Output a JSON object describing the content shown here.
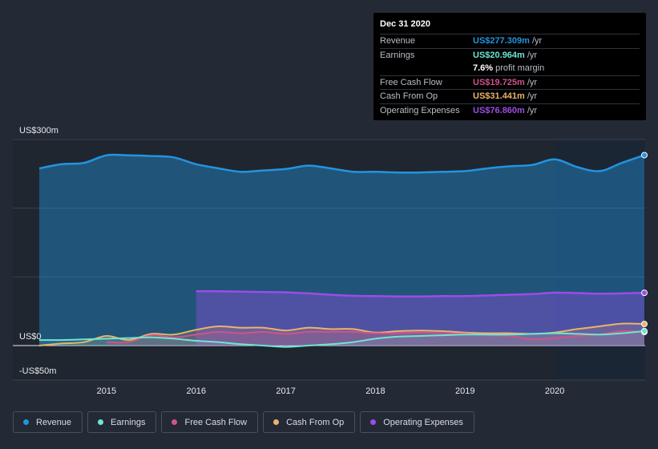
{
  "tooltip": {
    "date": "Dec 31 2020",
    "rows": [
      {
        "label": "Revenue",
        "value": "US$277.309m",
        "unit": "/yr",
        "color": "#2394df"
      },
      {
        "label": "Earnings",
        "value": "US$20.964m",
        "unit": "/yr",
        "color": "#6ce6d3"
      },
      {
        "label": "",
        "value": "7.6%",
        "unit": "profit margin",
        "color": "#ffffff"
      },
      {
        "label": "Free Cash Flow",
        "value": "US$19.725m",
        "unit": "/yr",
        "color": "#d2528a"
      },
      {
        "label": "Cash From Op",
        "value": "US$31.441m",
        "unit": "/yr",
        "color": "#e9b46a"
      },
      {
        "label": "Operating Expenses",
        "value": "US$76.860m",
        "unit": "/yr",
        "color": "#9c4ce7"
      }
    ]
  },
  "legend": [
    {
      "label": "Revenue",
      "color": "#2394df"
    },
    {
      "label": "Earnings",
      "color": "#6ce6d3"
    },
    {
      "label": "Free Cash Flow",
      "color": "#d2528a"
    },
    {
      "label": "Cash From Op",
      "color": "#e9b46a"
    },
    {
      "label": "Operating Expenses",
      "color": "#9c4ce7"
    }
  ],
  "chart_data": {
    "type": "area",
    "title": "",
    "xlabel": "",
    "ylabel": "",
    "ylim": [
      -50,
      300
    ],
    "y_tick_labels": [
      "US$300m",
      "US$0",
      "-US$50m"
    ],
    "x_tick_labels": [
      "2015",
      "2016",
      "2017",
      "2018",
      "2019",
      "2020"
    ],
    "xlim": [
      2014.25,
      2021.0
    ],
    "highlight_start": 2020.0,
    "series": [
      {
        "name": "Revenue",
        "color": "#2394df",
        "points": [
          [
            2014.25,
            258
          ],
          [
            2014.5,
            264
          ],
          [
            2014.75,
            266
          ],
          [
            2015.0,
            277
          ],
          [
            2015.25,
            277
          ],
          [
            2015.5,
            276
          ],
          [
            2015.75,
            274
          ],
          [
            2016.0,
            264
          ],
          [
            2016.25,
            258
          ],
          [
            2016.5,
            253
          ],
          [
            2016.75,
            255
          ],
          [
            2017.0,
            257
          ],
          [
            2017.25,
            262
          ],
          [
            2017.5,
            258
          ],
          [
            2017.75,
            253
          ],
          [
            2018.0,
            253
          ],
          [
            2018.25,
            252
          ],
          [
            2018.5,
            252
          ],
          [
            2018.75,
            253
          ],
          [
            2019.0,
            254
          ],
          [
            2019.25,
            258
          ],
          [
            2019.5,
            261
          ],
          [
            2019.75,
            263
          ],
          [
            2020.0,
            271
          ],
          [
            2020.25,
            260
          ],
          [
            2020.5,
            254
          ],
          [
            2020.75,
            266
          ],
          [
            2021.0,
            277.3
          ]
        ]
      },
      {
        "name": "Operating Expenses",
        "color": "#9c4ce7",
        "points": [
          [
            2016.0,
            79
          ],
          [
            2016.25,
            79
          ],
          [
            2016.5,
            78.5
          ],
          [
            2016.75,
            78
          ],
          [
            2017.0,
            77.5
          ],
          [
            2017.25,
            76
          ],
          [
            2017.5,
            74
          ],
          [
            2017.75,
            72.5
          ],
          [
            2018.0,
            72
          ],
          [
            2018.25,
            71.5
          ],
          [
            2018.5,
            71.5
          ],
          [
            2018.75,
            72
          ],
          [
            2019.0,
            72
          ],
          [
            2019.25,
            73
          ],
          [
            2019.5,
            74
          ],
          [
            2019.75,
            75
          ],
          [
            2020.0,
            77
          ],
          [
            2020.25,
            76.5
          ],
          [
            2020.5,
            75.5
          ],
          [
            2020.75,
            76
          ],
          [
            2021.0,
            76.86
          ]
        ]
      },
      {
        "name": "Cash From Op",
        "color": "#e9b46a",
        "points": [
          [
            2014.25,
            0
          ],
          [
            2014.5,
            3
          ],
          [
            2014.75,
            5
          ],
          [
            2015.0,
            14
          ],
          [
            2015.25,
            8
          ],
          [
            2015.5,
            17
          ],
          [
            2015.75,
            16
          ],
          [
            2016.0,
            23
          ],
          [
            2016.25,
            28
          ],
          [
            2016.5,
            26
          ],
          [
            2016.75,
            26
          ],
          [
            2017.0,
            22
          ],
          [
            2017.25,
            26
          ],
          [
            2017.5,
            24
          ],
          [
            2017.75,
            24
          ],
          [
            2018.0,
            19
          ],
          [
            2018.25,
            21
          ],
          [
            2018.5,
            22
          ],
          [
            2018.75,
            21
          ],
          [
            2019.0,
            19
          ],
          [
            2019.25,
            18
          ],
          [
            2019.5,
            18
          ],
          [
            2019.75,
            17
          ],
          [
            2020.0,
            19
          ],
          [
            2020.25,
            24
          ],
          [
            2020.5,
            28
          ],
          [
            2020.75,
            32
          ],
          [
            2021.0,
            31.44
          ]
        ]
      },
      {
        "name": "Free Cash Flow",
        "color": "#d2528a",
        "points": [
          [
            2015.0,
            5
          ],
          [
            2015.25,
            5
          ],
          [
            2015.5,
            15
          ],
          [
            2015.75,
            12
          ],
          [
            2016.0,
            16
          ],
          [
            2016.25,
            20
          ],
          [
            2016.5,
            18
          ],
          [
            2016.75,
            20
          ],
          [
            2017.0,
            17
          ],
          [
            2017.25,
            20
          ],
          [
            2017.5,
            20
          ],
          [
            2017.75,
            20
          ],
          [
            2018.0,
            18
          ],
          [
            2018.25,
            18
          ],
          [
            2018.5,
            19
          ],
          [
            2018.75,
            18
          ],
          [
            2019.0,
            17
          ],
          [
            2019.25,
            15
          ],
          [
            2019.5,
            14
          ],
          [
            2019.75,
            9
          ],
          [
            2020.0,
            11
          ],
          [
            2020.25,
            14
          ],
          [
            2020.5,
            16
          ],
          [
            2020.75,
            21
          ],
          [
            2021.0,
            19.73
          ]
        ]
      },
      {
        "name": "Earnings",
        "color": "#6ce6d3",
        "points": [
          [
            2014.25,
            8
          ],
          [
            2014.5,
            8
          ],
          [
            2014.75,
            9
          ],
          [
            2015.0,
            10
          ],
          [
            2015.25,
            11
          ],
          [
            2015.5,
            12
          ],
          [
            2015.75,
            10
          ],
          [
            2016.0,
            7
          ],
          [
            2016.25,
            5
          ],
          [
            2016.5,
            2
          ],
          [
            2016.75,
            0
          ],
          [
            2017.0,
            -2
          ],
          [
            2017.25,
            0
          ],
          [
            2017.5,
            2
          ],
          [
            2017.75,
            5
          ],
          [
            2018.0,
            10
          ],
          [
            2018.25,
            13
          ],
          [
            2018.5,
            14
          ],
          [
            2018.75,
            15
          ],
          [
            2019.0,
            16
          ],
          [
            2019.25,
            16
          ],
          [
            2019.5,
            16
          ],
          [
            2019.75,
            17
          ],
          [
            2020.0,
            18
          ],
          [
            2020.25,
            17
          ],
          [
            2020.5,
            16
          ],
          [
            2020.75,
            18
          ],
          [
            2021.0,
            20.96
          ]
        ]
      }
    ]
  }
}
